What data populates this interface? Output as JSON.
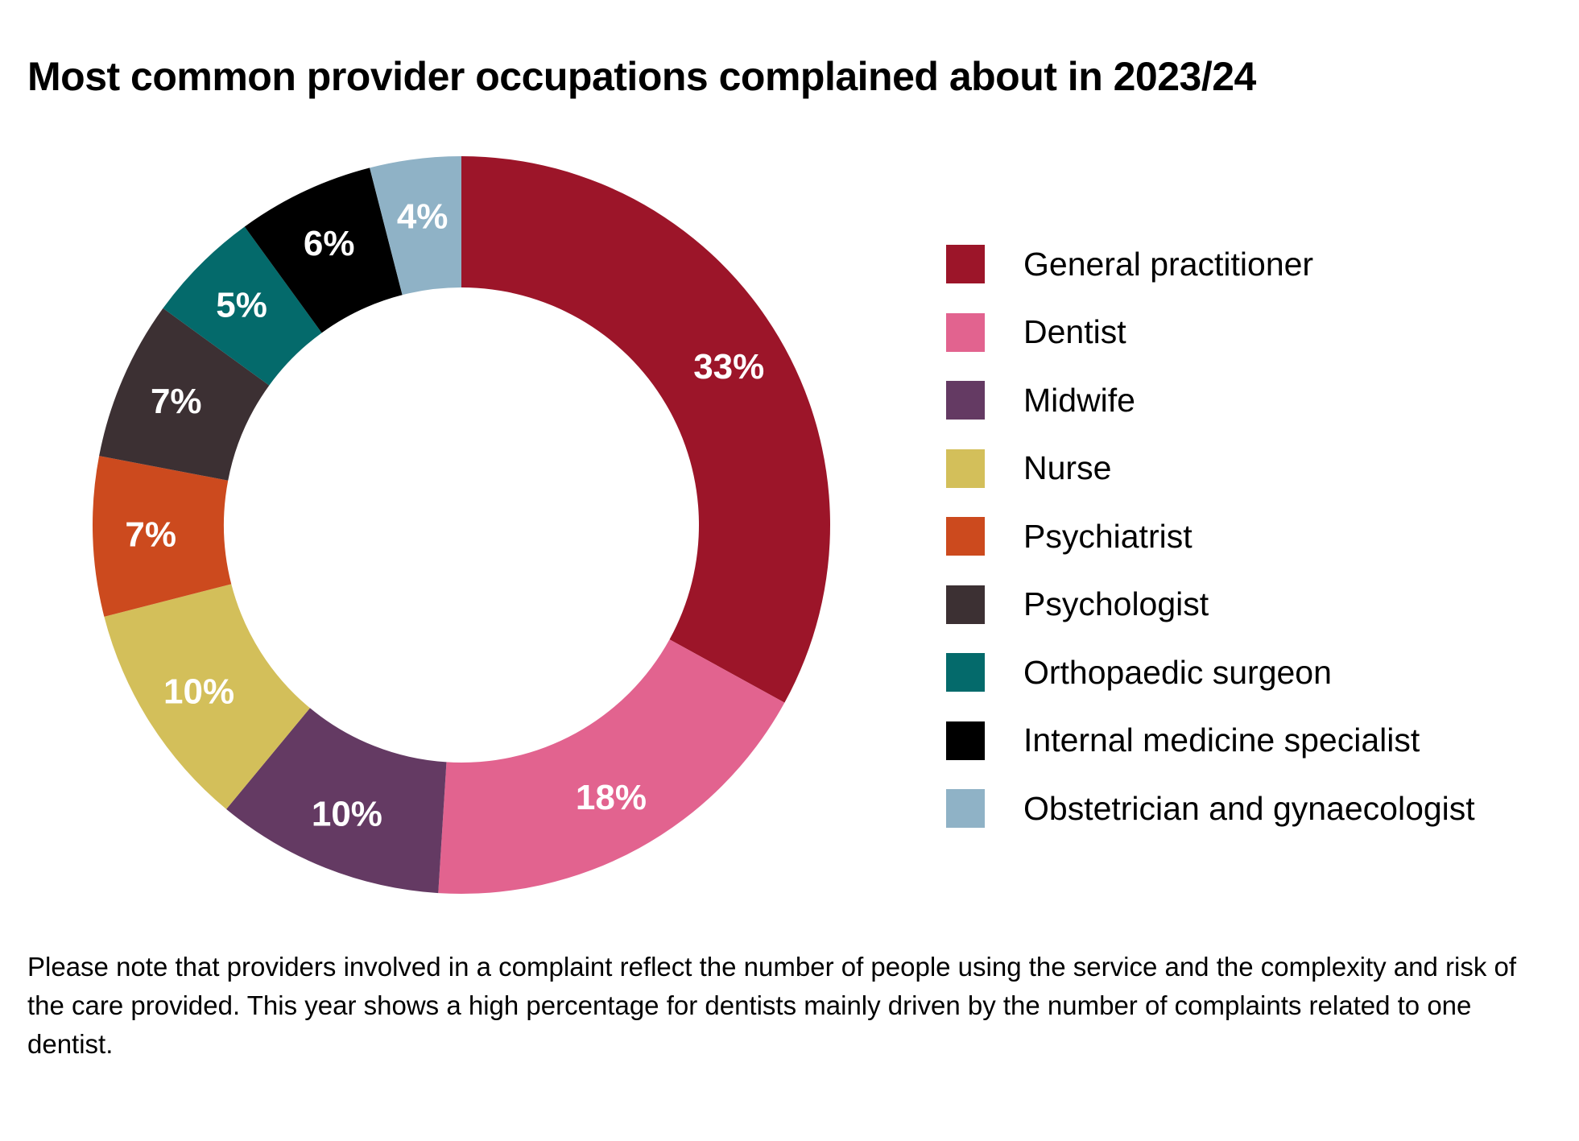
{
  "chart_data": {
    "type": "pie",
    "title": "Most common provider occupations complained about in 2023/24",
    "categories": [
      "General practitioner",
      "Dentist",
      "Midwife",
      "Nurse",
      "Psychiatrist",
      "Psychologist",
      "Orthopaedic surgeon",
      "Internal medicine specialist",
      "Obstetrician and gynaecologist"
    ],
    "values": [
      33,
      18,
      10,
      10,
      7,
      7,
      5,
      6,
      4
    ],
    "labels": [
      "33%",
      "18%",
      "10%",
      "10%",
      "7%",
      "7%",
      "5%",
      "6%",
      "4%"
    ],
    "colors": [
      "#9c1529",
      "#e2638f",
      "#643a63",
      "#d3bf5a",
      "#cc4a1e",
      "#3c3033",
      "#046a6b",
      "#000000",
      "#8fb2c6"
    ],
    "donut": true,
    "legend_position": "right"
  },
  "footnote": "Please note that providers involved in a complaint reflect the number of people using the service and the complexity and risk of the care provided. This year shows a high percentage for dentists mainly driven by the number of complaints related to one dentist."
}
